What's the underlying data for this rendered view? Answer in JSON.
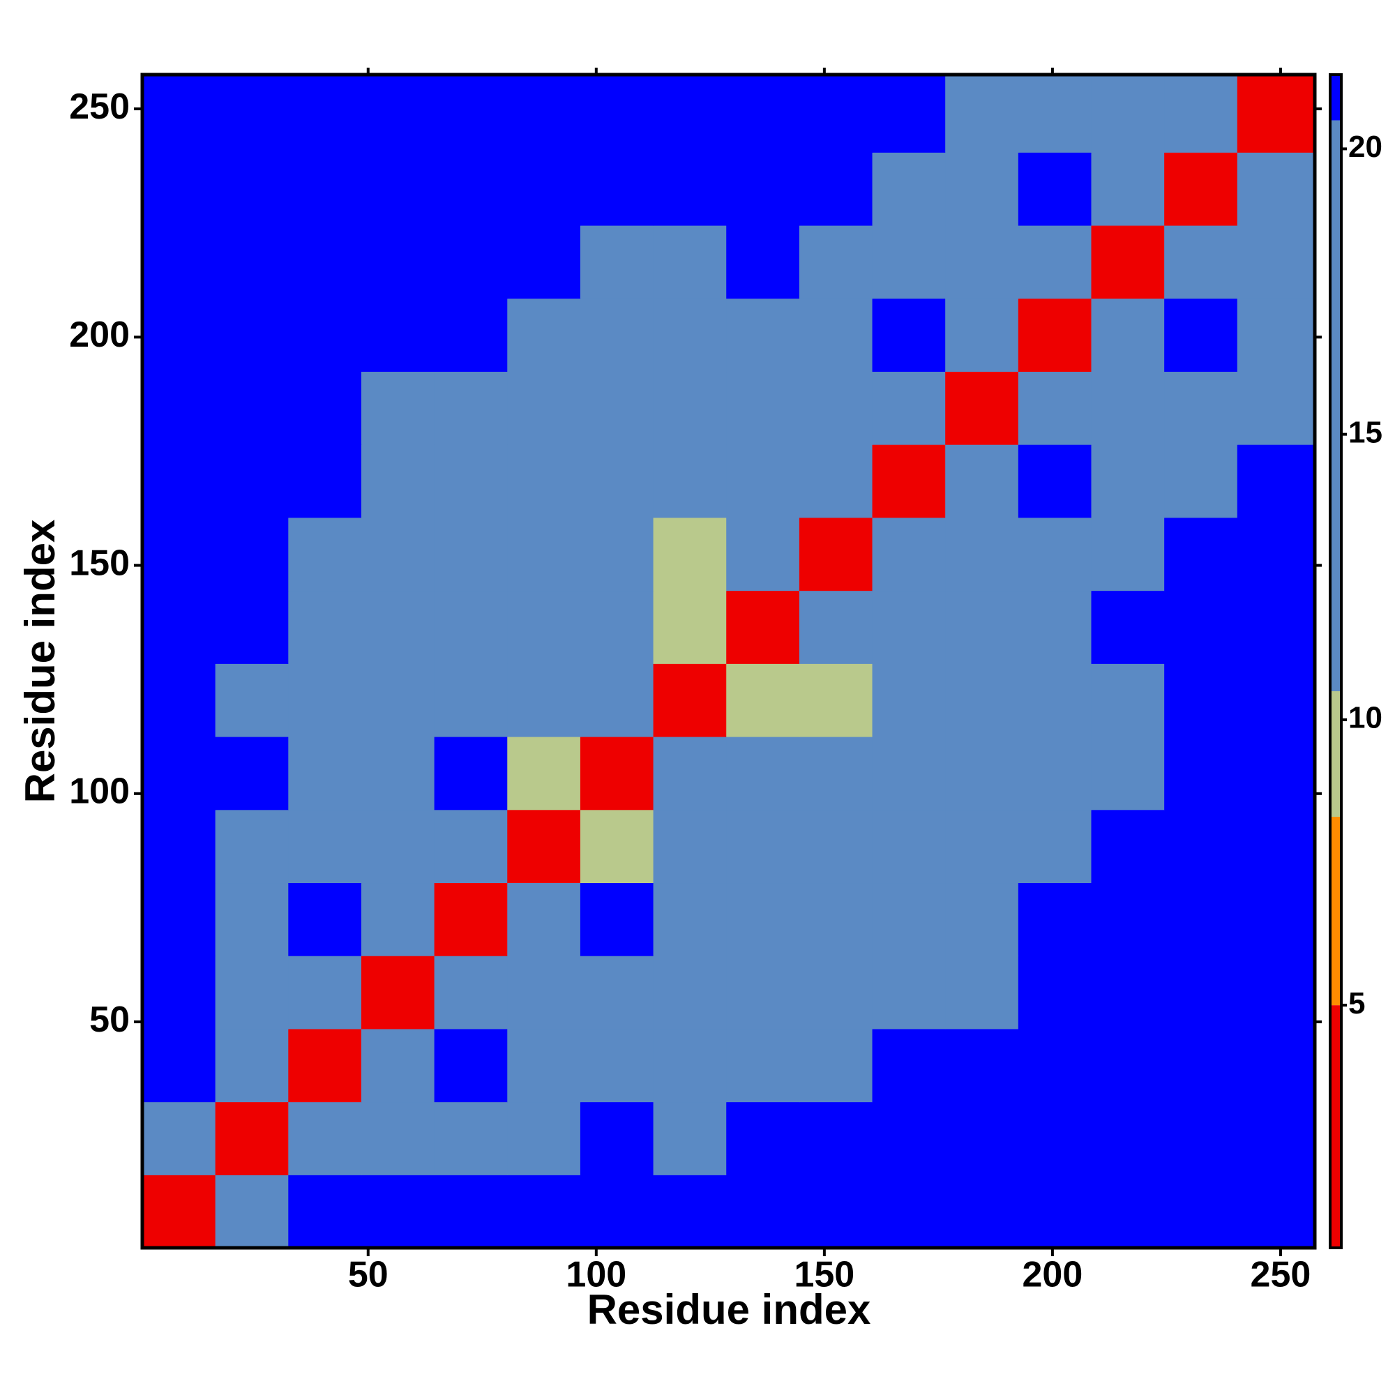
{
  "chart_data": {
    "type": "heatmap",
    "xlabel": "Residue index",
    "ylabel": "Residue index",
    "xlim": [
      0.5,
      257.5
    ],
    "ylim": [
      0.5,
      257.5
    ],
    "xticks": [
      50,
      100,
      150,
      200,
      250
    ],
    "yticks": [
      50,
      100,
      150,
      200,
      250
    ],
    "x_bins": [
      0.5,
      16.5,
      32.5,
      48.5,
      64.5,
      80.5,
      96.5,
      112.5,
      128.5,
      144.5,
      160.5,
      176.5,
      192.5,
      208.5,
      224.5,
      240.5,
      257.5
    ],
    "y_bins": [
      0.5,
      16.5,
      32.5,
      48.5,
      64.5,
      80.5,
      96.5,
      112.5,
      128.5,
      144.5,
      160.5,
      176.5,
      192.5,
      208.5,
      224.5,
      240.5,
      257.5
    ],
    "z": [
      [
        5,
        16,
        22,
        22,
        22,
        22,
        23,
        23,
        23,
        23,
        23,
        23,
        23,
        23,
        23,
        23
      ],
      [
        16,
        5,
        15,
        15,
        16,
        18,
        21,
        19,
        22,
        23,
        23,
        23,
        23,
        23,
        23,
        23
      ],
      [
        22,
        15,
        5,
        12,
        21,
        14,
        16,
        17,
        20,
        19,
        21,
        23,
        23,
        23,
        23,
        23
      ],
      [
        22,
        15,
        12,
        5,
        12,
        13,
        15,
        15,
        15,
        17,
        17,
        20,
        22,
        21,
        23,
        23
      ],
      [
        22,
        16,
        21,
        12,
        5,
        11,
        21,
        14,
        16,
        17,
        16,
        19,
        23,
        21,
        23,
        23
      ],
      [
        22,
        18,
        14,
        13,
        11,
        5,
        10,
        14,
        15,
        14,
        15,
        17,
        18,
        22,
        23,
        23
      ],
      [
        23,
        21,
        16,
        15,
        21,
        10,
        5,
        11,
        20,
        11,
        13,
        16,
        20,
        19,
        23,
        23
      ],
      [
        23,
        19,
        17,
        15,
        14,
        14,
        11,
        5,
        9,
        9,
        14,
        15,
        16,
        17,
        21,
        23
      ],
      [
        23,
        22,
        20,
        15,
        16,
        15,
        20,
        9,
        5,
        11,
        20,
        15,
        19,
        22,
        23,
        23
      ],
      [
        23,
        23,
        19,
        17,
        17,
        14,
        11,
        9,
        11,
        5,
        12,
        14,
        14,
        17,
        22,
        23
      ],
      [
        23,
        23,
        21,
        17,
        16,
        15,
        13,
        14,
        20,
        12,
        5,
        12,
        21,
        15,
        19,
        21
      ],
      [
        23,
        23,
        23,
        20,
        19,
        17,
        16,
        15,
        15,
        14,
        12,
        5,
        11,
        14,
        16,
        20
      ],
      [
        23,
        23,
        23,
        22,
        23,
        18,
        20,
        16,
        19,
        14,
        21,
        11,
        5,
        11,
        21,
        15
      ],
      [
        23,
        23,
        23,
        21,
        21,
        22,
        19,
        17,
        22,
        17,
        15,
        14,
        11,
        5,
        12,
        14
      ],
      [
        23,
        23,
        23,
        23,
        23,
        23,
        23,
        21,
        23,
        22,
        19,
        16,
        21,
        12,
        5,
        12
      ],
      [
        23,
        23,
        23,
        23,
        23,
        23,
        23,
        23,
        23,
        23,
        21,
        20,
        15,
        14,
        12,
        5
      ]
    ],
    "colorscale": [
      {
        "max": 5,
        "color": "#ee0000"
      },
      {
        "max": 8.3,
        "color": "#ff8c00"
      },
      {
        "max": 10.5,
        "color": "#b9c98c"
      },
      {
        "max": 20.5,
        "color": "#5b8ac4"
      },
      {
        "max": 21.3,
        "color": "#0000ff"
      }
    ],
    "colorbar": {
      "lim": [
        0.75,
        21.3
      ],
      "ticks": [
        5,
        10,
        15,
        20
      ]
    }
  }
}
